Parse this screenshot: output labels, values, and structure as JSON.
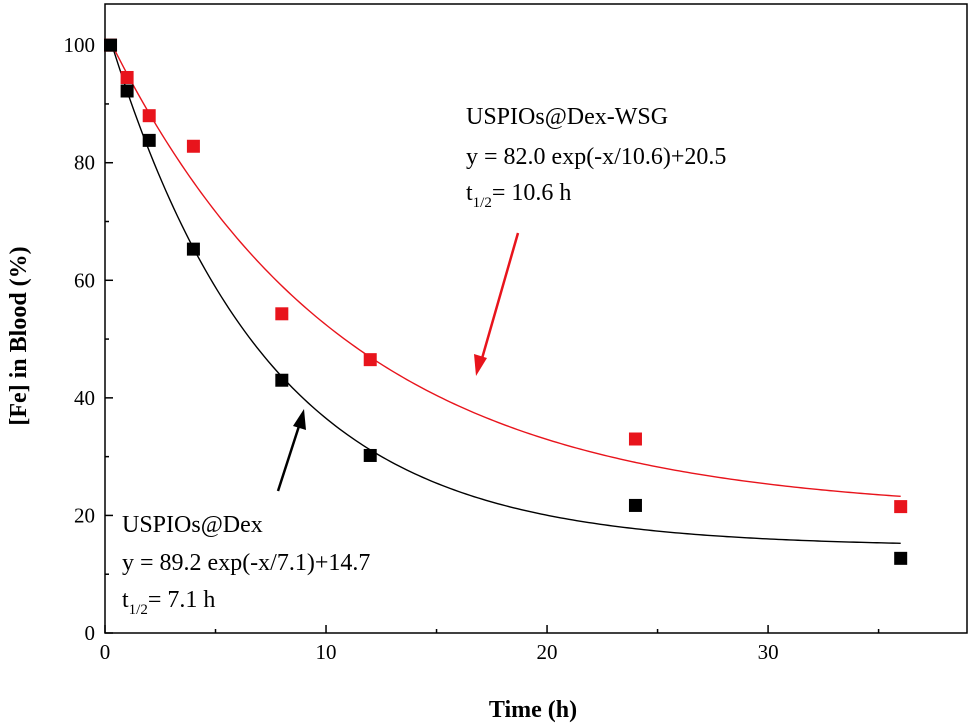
{
  "chart_data": {
    "type": "scatter",
    "title": "",
    "xlabel": "Time (h)",
    "ylabel": "[Fe] in Blood (%)",
    "xlim": [
      0,
      39
    ],
    "ylim": [
      0,
      107
    ],
    "xticks": [
      0,
      10,
      20,
      30
    ],
    "yticks": [
      0,
      20,
      40,
      60,
      80,
      100
    ],
    "grid": false,
    "legend": "none",
    "colors": {
      "dex": "#000000",
      "wsg": "#e8141c",
      "axis": "#000000"
    },
    "series": [
      {
        "name": "USPIOs@Dex-WSG",
        "color": "#e8141c",
        "points": [
          [
            0.25,
            100
          ],
          [
            1,
            94.5
          ],
          [
            2,
            88
          ],
          [
            4,
            82.8
          ],
          [
            8,
            54.3
          ],
          [
            12,
            46.5
          ],
          [
            24,
            33
          ],
          [
            36,
            21.5
          ]
        ],
        "fit": {
          "A": 82.0,
          "tau": 10.6,
          "c": 20.5,
          "x_range": [
            0.25,
            36
          ]
        }
      },
      {
        "name": "USPIOs@Dex",
        "color": "#000000",
        "points": [
          [
            0.25,
            100
          ],
          [
            1,
            92.2
          ],
          [
            2,
            83.8
          ],
          [
            4,
            65.3
          ],
          [
            8,
            43
          ],
          [
            12,
            30.2
          ],
          [
            24,
            21.7
          ],
          [
            36,
            12.7
          ]
        ],
        "fit": {
          "A": 89.2,
          "tau": 7.1,
          "c": 14.7,
          "x_range": [
            0.25,
            36
          ]
        }
      }
    ],
    "annotations": {
      "wsg": {
        "name": "USPIOs@Dex-WSG",
        "equation": "y = 82.0 exp(-x/10.6)+20.5",
        "half_life_prefix": "t",
        "half_life_sub": "1/2",
        "half_life_value": "= 10.6 h"
      },
      "dex": {
        "name": "USPIOs@Dex",
        "equation": "y = 89.2 exp(-x/7.1)+14.7",
        "half_life_prefix": "t",
        "half_life_sub": "1/2",
        "half_life_value": "= 7.1 h"
      }
    }
  }
}
